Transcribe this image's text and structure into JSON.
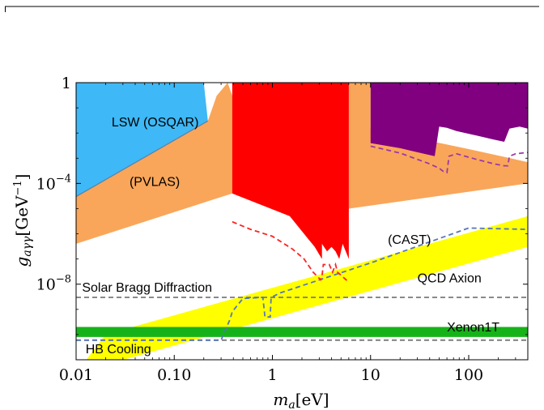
{
  "chart_data": {
    "type": "area",
    "title": "",
    "xlabel": {
      "var": "m",
      "sub": "a",
      "unit": "[eV]"
    },
    "ylabel": {
      "var": "g",
      "sub": "aγγ",
      "unit_pre": "[GeV",
      "unit_sup": "−1",
      "unit_post": "]"
    },
    "x_scale": "log",
    "y_scale": "log",
    "xlim": [
      0.01,
      400
    ],
    "ylim": [
      1e-11,
      1
    ],
    "x_ticks": [
      {
        "value": 0.01,
        "label": "0.01"
      },
      {
        "value": 0.1,
        "label": "0.10"
      },
      {
        "value": 1,
        "label": "1"
      },
      {
        "value": 10,
        "label": "10"
      },
      {
        "value": 100,
        "label": "100"
      }
    ],
    "y_ticks": [
      {
        "value": 1,
        "label": "1",
        "sup": ""
      },
      {
        "value": 0.0001,
        "label": "10",
        "sup": "−4"
      },
      {
        "value": 1e-08,
        "label": "10",
        "sup": "−8"
      }
    ],
    "regions": [
      {
        "name": "LSW (OSQAR)",
        "color": "#3eb8f6",
        "polygon": [
          [
            0.01,
            1
          ],
          [
            0.2,
            1
          ],
          [
            0.22,
            0.03
          ],
          [
            0.01,
            3e-05
          ]
        ]
      },
      {
        "name": "(PVLAS)",
        "color": "#f9a65a",
        "polygon": [
          [
            0.01,
            3e-05
          ],
          [
            0.22,
            0.03
          ],
          [
            0.27,
            0.3
          ],
          [
            0.35,
            1
          ],
          [
            0.39,
            0.3
          ],
          [
            0.39,
            4e-05
          ],
          [
            0.01,
            4e-07
          ]
        ]
      },
      {
        "name": "",
        "color": "#f9a65a",
        "polygon": [
          [
            6,
            1
          ],
          [
            10,
            1
          ],
          [
            10,
            0.015
          ],
          [
            100,
            0.0023
          ],
          [
            300,
            0.0009
          ],
          [
            400,
            0.0007
          ],
          [
            400,
            0.0001
          ],
          [
            6,
            1e-05
          ]
        ]
      },
      {
        "name": "",
        "color": "#ff0000",
        "polygon": [
          [
            0.39,
            1
          ],
          [
            6,
            1
          ],
          [
            6,
            1e-07
          ],
          [
            5.2,
            4e-07
          ],
          [
            4.8,
            1e-07
          ],
          [
            4.4,
            2e-07
          ],
          [
            4.0,
            3e-07
          ],
          [
            3.6,
            2e-07
          ],
          [
            3.2,
            4e-07
          ],
          [
            3.2,
            1e-07
          ],
          [
            2.7,
            3e-07
          ],
          [
            1.5,
            5e-06
          ],
          [
            0.39,
            4e-05
          ]
        ]
      },
      {
        "name": "",
        "color": "#800080",
        "polygon": [
          [
            10,
            1
          ],
          [
            400,
            1
          ],
          [
            400,
            0.015
          ],
          [
            330,
            0.018
          ],
          [
            260,
            0.015
          ],
          [
            230,
            0.0045
          ],
          [
            180,
            0.0055
          ],
          [
            120,
            0.008
          ],
          [
            75,
            0.012
          ],
          [
            60,
            0.016
          ],
          [
            50,
            0.018
          ],
          [
            45,
            0.0012
          ],
          [
            35,
            0.0015
          ],
          [
            20,
            0.0025
          ],
          [
            10,
            0.004
          ]
        ]
      },
      {
        "name": "QCD Axion",
        "color": "#ffff00",
        "polygon": [
          [
            0.01,
            3e-12
          ],
          [
            400,
            3e-07
          ],
          [
            400,
            5e-06
          ],
          [
            0.02,
            1e-10
          ]
        ]
      },
      {
        "name": "Xenon1T",
        "color": "#16b21a",
        "polygon": [
          [
            0.01,
            8e-11
          ],
          [
            400,
            8e-11
          ],
          [
            400,
            2e-10
          ],
          [
            0.01,
            2e-10
          ]
        ]
      }
    ],
    "dashed_lines": [
      {
        "name": "Solar Bragg Diffraction",
        "color": "#7a7a7a",
        "points": [
          [
            0.01,
            3e-09
          ],
          [
            400,
            3e-09
          ]
        ]
      },
      {
        "name": "HB Cooling",
        "color": "#7a7a7a",
        "points": [
          [
            0.01,
            6e-11
          ],
          [
            400,
            6e-11
          ]
        ]
      },
      {
        "name": "(CAST)",
        "color": "#5577bb",
        "points": [
          [
            0.01,
            6e-11
          ],
          [
            0.3,
            6e-11
          ],
          [
            0.37,
            4e-10
          ],
          [
            0.39,
            8e-10
          ],
          [
            0.5,
            2.7e-09
          ],
          [
            0.8,
            3e-09
          ],
          [
            0.84,
            5e-10
          ],
          [
            0.95,
            5e-10
          ],
          [
            0.97,
            3e-09
          ],
          [
            1.2,
            4.5e-09
          ],
          [
            10,
            7e-08
          ],
          [
            100,
            1.7e-06
          ],
          [
            400,
            1.5e-06
          ]
        ]
      },
      {
        "name": "",
        "color": "#ff2222",
        "points": [
          [
            0.39,
            3e-06
          ],
          [
            0.6,
            1.5e-06
          ],
          [
            1,
            8e-07
          ],
          [
            1.6,
            2.5e-07
          ],
          [
            2.1,
            1e-07
          ],
          [
            2.6,
            3e-08
          ],
          [
            3.1,
            1.5e-08
          ],
          [
            3.2,
            2e-08
          ],
          [
            3.3,
            6e-08
          ],
          [
            3.8,
            6e-08
          ],
          [
            4.1,
            3e-08
          ],
          [
            4.4,
            6e-08
          ],
          [
            4.6,
            3e-08
          ],
          [
            6,
            1.2e-08
          ]
        ]
      },
      {
        "name": "",
        "color": "#9b3aa6",
        "points": [
          [
            10,
            0.003
          ],
          [
            20,
            0.0016
          ],
          [
            40,
            0.0006
          ],
          [
            50,
            0.0004
          ],
          [
            55,
            0.0003
          ],
          [
            60,
            0.00027
          ],
          [
            63,
            0.0012
          ],
          [
            75,
            0.0015
          ],
          [
            120,
            0.0009
          ],
          [
            180,
            0.0006
          ],
          [
            230,
            0.0005
          ],
          [
            250,
            0.0005
          ],
          [
            260,
            0.0012
          ],
          [
            300,
            0.0015
          ],
          [
            400,
            0.0017
          ]
        ]
      }
    ],
    "region_labels": [
      {
        "text": "LSW (OSQAR)",
        "x": 0.023,
        "y": 0.018
      },
      {
        "text": "(PVLAS)",
        "x": 0.035,
        "y": 8e-05
      },
      {
        "text": "(CAST)",
        "x": 15,
        "y": 4e-07
      },
      {
        "text": "QCD Axion",
        "x": 30,
        "y": 1.2e-08
      },
      {
        "text": "Solar Bragg Diffraction",
        "x": 0.0115,
        "y": 5e-09
      },
      {
        "text": "Xenon1T",
        "x": 60,
        "y": 1.35e-10
      },
      {
        "text": "HB Cooling",
        "x": 0.0125,
        "y": 1.8e-11
      }
    ],
    "grid": false,
    "legend": "none"
  }
}
